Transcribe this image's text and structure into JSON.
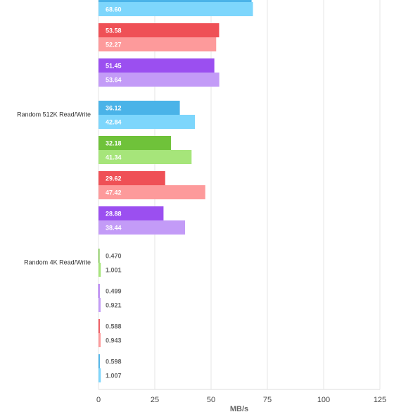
{
  "chart_data": {
    "type": "bar",
    "orientation": "horizontal",
    "x_label": "MB/s",
    "xlim": [
      0,
      125
    ],
    "xticks": [
      0,
      25,
      50,
      75,
      100,
      125
    ],
    "grid": true,
    "groups": [
      {
        "label": null,
        "bars": [
          {
            "color": [
              "#4ab3e8",
              "#7dd6fc"
            ],
            "values": [
              68,
              68.6
            ],
            "value_labels": [
              null,
              "68.60"
            ]
          },
          {
            "color": [
              "#ef5056",
              "#fd9a9b"
            ],
            "values": [
              53.58,
              52.27
            ],
            "value_labels": [
              "53.58",
              "52.27"
            ]
          },
          {
            "color": [
              "#9b4ff0",
              "#c39bf7"
            ],
            "values": [
              51.45,
              53.64
            ],
            "value_labels": [
              "51.45",
              "53.64"
            ]
          }
        ]
      },
      {
        "label": "Random 512K Read/Write",
        "bars": [
          {
            "color": [
              "#4ab3e8",
              "#7dd6fc"
            ],
            "values": [
              36.12,
              42.84
            ],
            "value_labels": [
              "36.12",
              "42.84"
            ]
          },
          {
            "color": [
              "#6fc23a",
              "#a6e57a"
            ],
            "values": [
              32.18,
              41.34
            ],
            "value_labels": [
              "32.18",
              "41.34"
            ]
          },
          {
            "color": [
              "#ef5056",
              "#fd9a9b"
            ],
            "values": [
              29.62,
              47.42
            ],
            "value_labels": [
              "29.62",
              "47.42"
            ]
          },
          {
            "color": [
              "#9b4ff0",
              "#c39bf7"
            ],
            "values": [
              28.88,
              38.44
            ],
            "value_labels": [
              "28.88",
              "38.44"
            ]
          }
        ]
      },
      {
        "label": "Random 4K Read/Write",
        "bars": [
          {
            "color": [
              "#6fc23a",
              "#a6e57a"
            ],
            "values": [
              0.47,
              1.001
            ],
            "value_labels": [
              "0.470",
              "1.001"
            ]
          },
          {
            "color": [
              "#9b4ff0",
              "#c39bf7"
            ],
            "values": [
              0.499,
              0.921
            ],
            "value_labels": [
              "0.499",
              "0.921"
            ]
          },
          {
            "color": [
              "#ef5056",
              "#fd9a9b"
            ],
            "values": [
              0.588,
              0.943
            ],
            "value_labels": [
              "0.588",
              "0.943"
            ]
          },
          {
            "color": [
              "#4ab3e8",
              "#7dd6fc"
            ],
            "values": [
              0.598,
              1.007
            ],
            "value_labels": [
              "0.598",
              "1.007"
            ]
          }
        ]
      }
    ]
  }
}
